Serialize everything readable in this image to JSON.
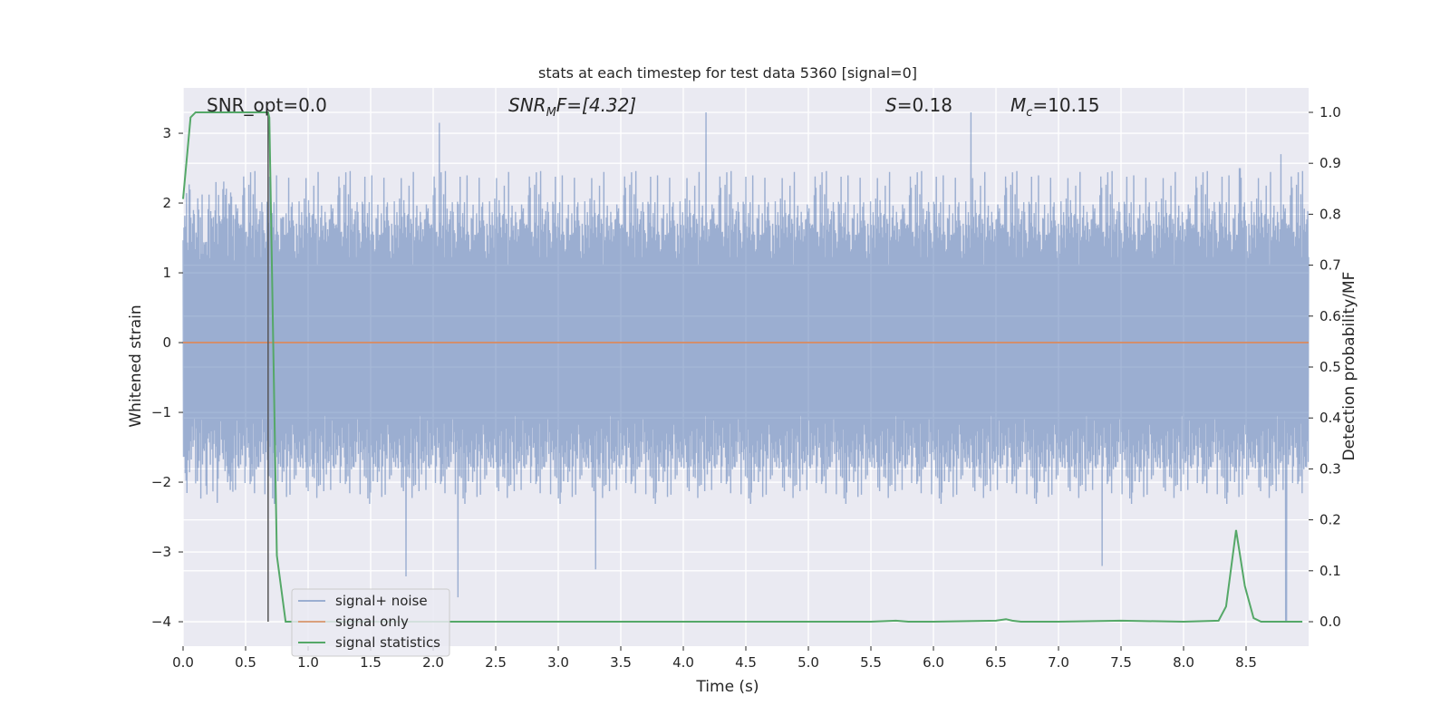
{
  "chart_data": {
    "type": "line",
    "title": "stats at each timestep for test data 5360 [signal=0]",
    "xlabel": "Time (s)",
    "ylabel_left": "Whitened strain",
    "ylabel_right": "Detection probability/MF",
    "xlim": [
      0,
      9.0
    ],
    "ylim_left": [
      -4.35,
      3.65
    ],
    "ylim_right": [
      -0.048,
      1.048
    ],
    "x_ticks": [
      0.0,
      0.5,
      1.0,
      1.5,
      2.0,
      2.5,
      3.0,
      3.5,
      4.0,
      4.5,
      5.0,
      5.5,
      6.0,
      6.5,
      7.0,
      7.5,
      8.0,
      8.5
    ],
    "x_tick_labels": [
      "0.0",
      "0.5",
      "1.0",
      "1.5",
      "2.0",
      "2.5",
      "3.0",
      "3.5",
      "4.0",
      "4.5",
      "5.0",
      "5.5",
      "6.0",
      "6.5",
      "7.0",
      "7.5",
      "8.0",
      "8.5"
    ],
    "y_ticks_left": [
      3,
      2,
      1,
      0,
      -1,
      -2,
      -3,
      -4
    ],
    "y_tick_labels_left": [
      "3",
      "2",
      "1",
      "0",
      "−1",
      "−2",
      "−3",
      "−4"
    ],
    "y_ticks_right": [
      1.0,
      0.9,
      0.8,
      0.7,
      0.6,
      0.5,
      0.4,
      0.3,
      0.2,
      0.1,
      0.0
    ],
    "y_tick_labels_right": [
      "1.0",
      "0.9",
      "0.8",
      "0.7",
      "0.6",
      "0.5",
      "0.4",
      "0.3",
      "0.2",
      "0.1",
      "0.0"
    ],
    "grid": true,
    "legend": {
      "placement": "lower-left",
      "entries": [
        "signal+ noise",
        "signal only",
        "signal statistics"
      ]
    },
    "annotations": {
      "snr_opt": "SNR_opt=0.0",
      "snr_mf_prefix": "SNR",
      "snr_mf_sub": "M",
      "snr_mf_suffix": "F=[4.32]",
      "s_prefix": "S",
      "s_suffix": "=0.18",
      "mc_prefix": "M",
      "mc_sub": "c",
      "mc_suffix": "=10.15"
    },
    "vertical_marker_x": 0.68,
    "series": [
      {
        "name": "signal+ noise",
        "color": "#4c72b0",
        "axis": "left",
        "style": "dense noise, amplitude approx ±2.5 with peaks to 3.3 and dips to −4.0",
        "peaks": [
          [
            0.8,
            1.8
          ],
          [
            2.05,
            3.15
          ],
          [
            4.18,
            3.3
          ],
          [
            6.3,
            3.3
          ],
          [
            8.45,
            2.5
          ],
          [
            8.78,
            2.7
          ]
        ],
        "dips": [
          [
            1.78,
            -3.35
          ],
          [
            2.2,
            -3.65
          ],
          [
            3.3,
            -3.25
          ],
          [
            7.35,
            -3.2
          ],
          [
            8.82,
            -4.0
          ]
        ]
      },
      {
        "name": "signal only",
        "color": "#dd8452",
        "axis": "left",
        "x": [
          0,
          9.0
        ],
        "y": [
          0,
          0
        ]
      },
      {
        "name": "signal statistics",
        "color": "#55a868",
        "axis": "right",
        "x": [
          0,
          0.06,
          0.1,
          0.2,
          0.3,
          0.4,
          0.5,
          0.6,
          0.68,
          0.69,
          0.75,
          0.82,
          1.0,
          2.0,
          3.0,
          4.0,
          5.0,
          5.5,
          5.7,
          5.8,
          6.0,
          6.5,
          6.58,
          6.63,
          6.7,
          7.0,
          7.5,
          8.0,
          8.28,
          8.34,
          8.42,
          8.49,
          8.56,
          8.62,
          8.7,
          8.8,
          8.95
        ],
        "y": [
          0.83,
          0.99,
          1.0,
          1.0,
          1.0,
          1.0,
          1.0,
          1.0,
          1.0,
          0.99,
          0.13,
          0.0,
          0.0,
          0.0,
          0.0,
          0.0,
          0.0,
          0.0,
          0.002,
          0.0,
          0.0,
          0.002,
          0.005,
          0.002,
          0.0,
          0.0,
          0.002,
          0.0,
          0.002,
          0.03,
          0.18,
          0.07,
          0.007,
          0.0,
          0.0,
          0.0,
          0.0
        ]
      }
    ]
  }
}
